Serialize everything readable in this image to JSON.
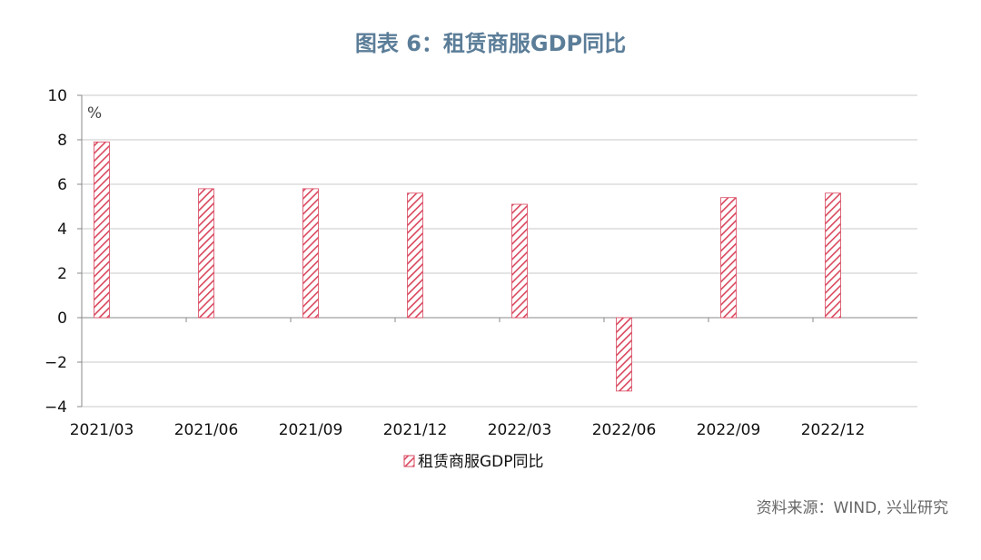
{
  "title": "图表 6：租赁商服GDP同比",
  "source": "资料来源：WIND, 兴业研究",
  "chart_data": {
    "type": "bar",
    "categories": [
      "2021/03",
      "2021/06",
      "2021/09",
      "2021/12",
      "2022/03",
      "2022/06",
      "2022/09",
      "2022/12"
    ],
    "series": [
      {
        "name": "租赁商服GDP同比",
        "values": [
          7.9,
          5.8,
          5.8,
          5.6,
          5.1,
          -3.3,
          5.4,
          5.6
        ]
      }
    ],
    "y_unit": "%",
    "ylim": [
      -4,
      10
    ],
    "yticks": [
      10,
      8,
      6,
      4,
      2,
      0,
      -2,
      -4
    ],
    "ytick_labels": [
      "10",
      "8",
      "6",
      "4",
      "2",
      "0",
      "−2",
      "−4"
    ],
    "grid": true,
    "legend_position": "bottom",
    "bar_color": "#d9475e",
    "bar_fill": "diagonal-hatch"
  }
}
